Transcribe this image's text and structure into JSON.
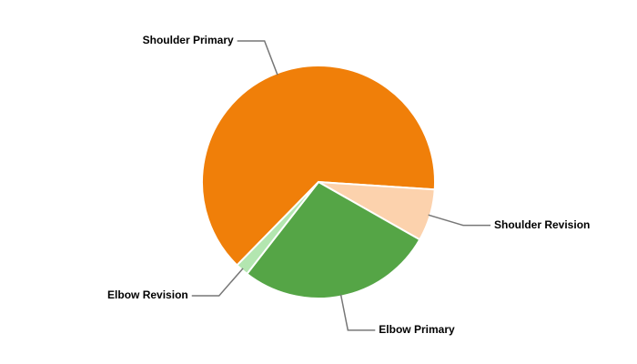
{
  "chart_data": {
    "type": "pie",
    "categories": [
      "Shoulder Primary",
      "Shoulder Revision",
      "Elbow Primary",
      "Elbow Revision"
    ],
    "values": [
      63.7,
      7.2,
      27.3,
      1.8
    ],
    "colors": [
      "#f07f09",
      "#fcd2ad",
      "#55a546",
      "#b3e6b0"
    ]
  }
}
